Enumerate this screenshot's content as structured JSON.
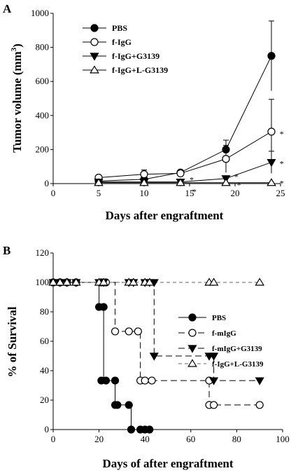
{
  "chart_data": [
    {
      "panel": "A",
      "type": "line",
      "xlabel": "Days after engraftment",
      "ylabel": "Tumor volume (mm³)",
      "xlim": [
        0,
        25
      ],
      "ylim": [
        0,
        1000
      ],
      "xticks": [
        "0",
        "5",
        "10",
        "15",
        "20",
        "25"
      ],
      "yticks": [
        "0",
        "200",
        "400",
        "600",
        "800",
        "1000"
      ],
      "legend_position": "top-left",
      "x": [
        5,
        10,
        14,
        19,
        24
      ],
      "series": [
        {
          "name": "PBS",
          "marker": "filled-circle",
          "values": [
            15,
            25,
            65,
            200,
            750
          ],
          "err": [
            5,
            15,
            12,
            55,
            205
          ]
        },
        {
          "name": "f-IgG",
          "marker": "open-circle",
          "values": [
            35,
            55,
            60,
            145,
            305
          ],
          "err": [
            5,
            25,
            15,
            80,
            190
          ]
        },
        {
          "name": "f-IgG+G3139",
          "marker": "filled-triangle-down",
          "values": [
            10,
            10,
            10,
            30,
            125
          ],
          "err": [
            3,
            5,
            3,
            15,
            65
          ]
        },
        {
          "name": "f-IgG+L-G3139",
          "marker": "open-triangle-up",
          "values": [
            5,
            5,
            5,
            5,
            5
          ],
          "err": [
            0,
            0,
            0,
            0,
            0
          ]
        }
      ],
      "annotations": [
        {
          "text": "*",
          "x": 24.9,
          "y": 300
        },
        {
          "text": "*",
          "x": 24.9,
          "y": 125
        },
        {
          "text": "*",
          "x": 24.9,
          "y": 10
        },
        {
          "text": "*",
          "x": 19.9,
          "y": 50
        },
        {
          "text": "*",
          "x": 20.2,
          "y": 0
        },
        {
          "text": "*",
          "x": 15.0,
          "y": 30
        },
        {
          "text": "*",
          "x": 15.3,
          "y": -40
        }
      ]
    },
    {
      "panel": "B",
      "type": "line",
      "style": "step",
      "xlabel": "Days of after engraftment",
      "ylabel": "% of Survival",
      "xlim": [
        0,
        100
      ],
      "ylim": [
        0,
        120
      ],
      "xticks": [
        "0",
        "20",
        "40",
        "60",
        "80",
        "100"
      ],
      "yticks": [
        "0",
        "20",
        "40",
        "60",
        "80",
        "100",
        "120"
      ],
      "legend_position": "right",
      "series": [
        {
          "name": "PBS",
          "marker": "filled-circle",
          "dash": "solid",
          "points": [
            [
              0,
              100
            ],
            [
              3,
              100
            ],
            [
              6,
              100
            ],
            [
              10,
              100
            ],
            [
              20,
              83.3
            ],
            [
              22,
              83.3
            ],
            [
              21,
              33.3
            ],
            [
              27,
              33.3
            ],
            [
              23,
              33.3
            ],
            [
              27,
              16.7
            ],
            [
              33,
              16.7
            ],
            [
              28,
              16.7
            ],
            [
              34,
              0
            ],
            [
              38,
              0
            ],
            [
              40,
              0
            ],
            [
              42,
              0
            ]
          ],
          "steps": [
            [
              0,
              100
            ],
            [
              20,
              100
            ],
            [
              20,
              83.3
            ],
            [
              22,
              83.3
            ],
            [
              22,
              33.3
            ],
            [
              27,
              33.3
            ],
            [
              27,
              16.7
            ],
            [
              34,
              16.7
            ],
            [
              34,
              0
            ],
            [
              42,
              0
            ]
          ]
        },
        {
          "name": "f-mIgG",
          "marker": "open-circle",
          "dash": "long",
          "points": [
            [
              0,
              100
            ],
            [
              3,
              100
            ],
            [
              6,
              100
            ],
            [
              10,
              100
            ],
            [
              21,
              100
            ],
            [
              23,
              100
            ],
            [
              27,
              66.7
            ],
            [
              33,
              66.7
            ],
            [
              37,
              66.7
            ],
            [
              38,
              33.3
            ],
            [
              40,
              33.3
            ],
            [
              43,
              33.3
            ],
            [
              68,
              33.3
            ],
            [
              68,
              16.7
            ],
            [
              70,
              16.7
            ],
            [
              90,
              16.7
            ]
          ],
          "steps": [
            [
              0,
              100
            ],
            [
              27,
              100
            ],
            [
              27,
              66.7
            ],
            [
              38,
              66.7
            ],
            [
              38,
              33.3
            ],
            [
              68,
              33.3
            ],
            [
              68,
              16.7
            ],
            [
              90,
              16.7
            ]
          ]
        },
        {
          "name": "f-mIgG+G3139",
          "marker": "filled-triangle-down",
          "dash": "long",
          "points": [
            [
              0,
              100
            ],
            [
              3,
              100
            ],
            [
              6,
              100
            ],
            [
              10,
              100
            ],
            [
              20,
              100
            ],
            [
              22,
              100
            ],
            [
              33,
              100
            ],
            [
              35,
              100
            ],
            [
              40,
              100
            ],
            [
              42,
              100
            ],
            [
              44,
              100
            ],
            [
              44,
              50
            ],
            [
              68,
              50
            ],
            [
              70,
              50
            ],
            [
              70,
              33.3
            ],
            [
              90,
              33.3
            ]
          ],
          "steps": [
            [
              0,
              100
            ],
            [
              44,
              100
            ],
            [
              44,
              50
            ],
            [
              70,
              50
            ],
            [
              70,
              33.3
            ],
            [
              90,
              33.3
            ]
          ]
        },
        {
          "name": "f-IgG+L-G3139",
          "marker": "open-triangle-up",
          "dash": "short",
          "points": [
            [
              0,
              100
            ],
            [
              3,
              100
            ],
            [
              6,
              100
            ],
            [
              10,
              100
            ],
            [
              20,
              100
            ],
            [
              22,
              100
            ],
            [
              33,
              100
            ],
            [
              35,
              100
            ],
            [
              40,
              100
            ],
            [
              42,
              100
            ],
            [
              68,
              100
            ],
            [
              70,
              100
            ],
            [
              90,
              100
            ]
          ],
          "steps": [
            [
              0,
              100
            ],
            [
              90,
              100
            ]
          ]
        }
      ]
    }
  ]
}
